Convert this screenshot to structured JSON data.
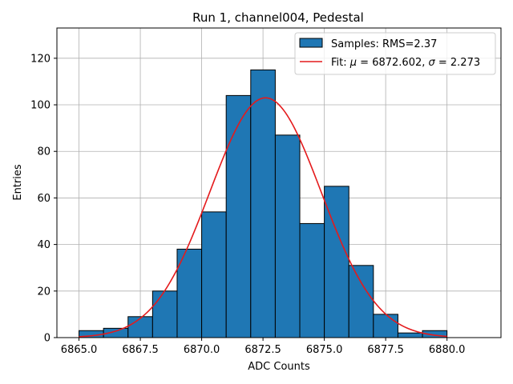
{
  "chart_data": {
    "type": "bar",
    "title": "Run 1, channel004, Pedestal",
    "xlabel": "ADC Counts",
    "ylabel": "Entries",
    "xlim": [
      6864.1,
      6882.2
    ],
    "ylim": [
      0,
      133
    ],
    "grid": true,
    "legend_position": "top-right",
    "bin_edges": [
      6865,
      6866,
      6867,
      6868,
      6869,
      6870,
      6871,
      6872,
      6873,
      6874,
      6875,
      6876,
      6877,
      6878,
      6879,
      6880
    ],
    "counts": [
      3,
      4,
      9,
      20,
      38,
      54,
      104,
      115,
      87,
      49,
      65,
      31,
      10,
      2,
      3
    ],
    "histogram_color": "#1f77b4",
    "fit": {
      "mu": 6872.602,
      "sigma": 2.273,
      "amplitude": 103,
      "color": "#e41a1c"
    },
    "x_ticks": [
      6865.0,
      6867.5,
      6870.0,
      6872.5,
      6875.0,
      6877.5,
      6880.0
    ],
    "x_tick_labels": [
      "6865.0",
      "6867.5",
      "6870.0",
      "6872.5",
      "6875.0",
      "6877.5",
      "6880.0"
    ],
    "y_ticks": [
      0,
      20,
      40,
      60,
      80,
      100,
      120
    ],
    "y_tick_labels": [
      "0",
      "20",
      "40",
      "60",
      "80",
      "100",
      "120"
    ],
    "legend": {
      "samples_label": "Samples: RMS=2.37",
      "fit_prefix": "Fit: ",
      "mu_symbol": "μ",
      "mu_text": " = 6872.602, ",
      "sigma_symbol": "σ",
      "sigma_text": " = 2.273"
    }
  }
}
